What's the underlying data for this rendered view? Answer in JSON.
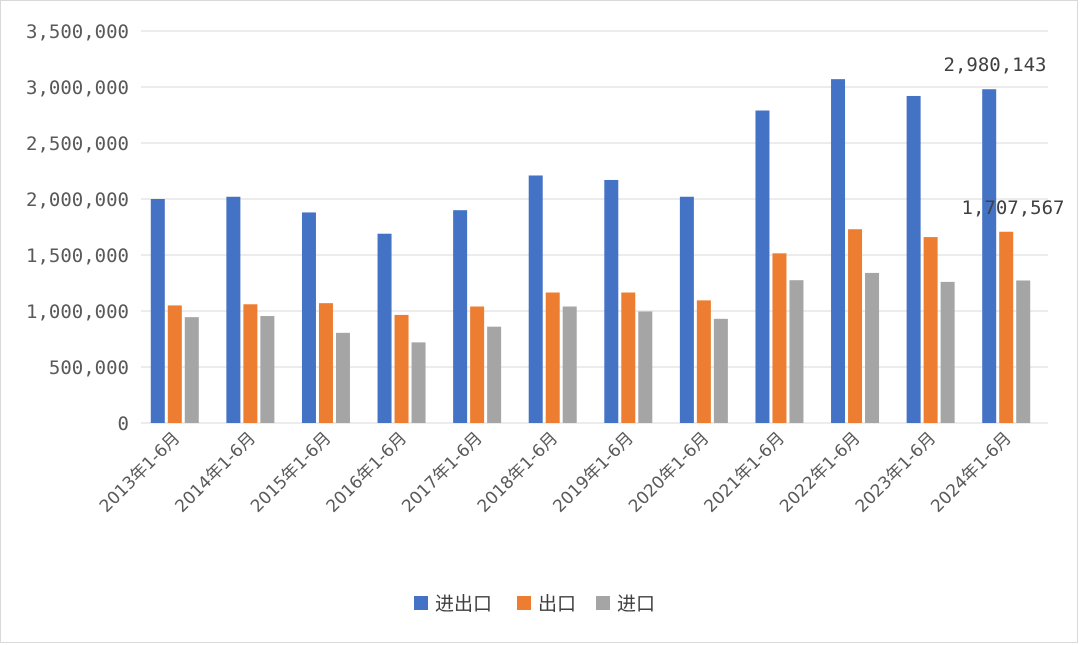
{
  "chart_data": {
    "type": "bar",
    "title": "",
    "xlabel": "",
    "ylabel": "",
    "categories": [
      "2013年1-6月",
      "2014年1-6月",
      "2015年1-6月",
      "2016年1-6月",
      "2017年1-6月",
      "2018年1-6月",
      "2019年1-6月",
      "2020年1-6月",
      "2021年1-6月",
      "2022年1-6月",
      "2023年1-6月",
      "2024年1-6月"
    ],
    "series": [
      {
        "name": "进出口",
        "color": "#4472C4",
        "values": [
          2000000,
          2020000,
          1880000,
          1690000,
          1900000,
          2210000,
          2170000,
          2020000,
          2790000,
          3070000,
          2920000,
          2980143
        ]
      },
      {
        "name": "出口",
        "color": "#ED7D31",
        "values": [
          1050000,
          1060000,
          1070000,
          965000,
          1040000,
          1165000,
          1165000,
          1095000,
          1515000,
          1730000,
          1660000,
          1707567
        ]
      },
      {
        "name": "进口",
        "color": "#A5A5A5",
        "values": [
          945000,
          955000,
          805000,
          720000,
          860000,
          1040000,
          995000,
          930000,
          1275000,
          1340000,
          1260000,
          1272576
        ]
      }
    ],
    "ylim": [
      0,
      3500000
    ],
    "yticks": [
      0,
      500000,
      1000000,
      1500000,
      2000000,
      2500000,
      3000000,
      3500000
    ],
    "ytick_labels": [
      "0",
      "500,000",
      "1,000,000",
      "1,500,000",
      "2,000,000",
      "2,500,000",
      "3,000,000",
      "3,500,000"
    ],
    "grid": true,
    "legend_position": "bottom",
    "annotations": [
      {
        "category_index": 11,
        "series_index": 0,
        "text": "2,980,143"
      },
      {
        "category_index": 11,
        "series_index": 1,
        "text": "1,707,567"
      }
    ]
  }
}
